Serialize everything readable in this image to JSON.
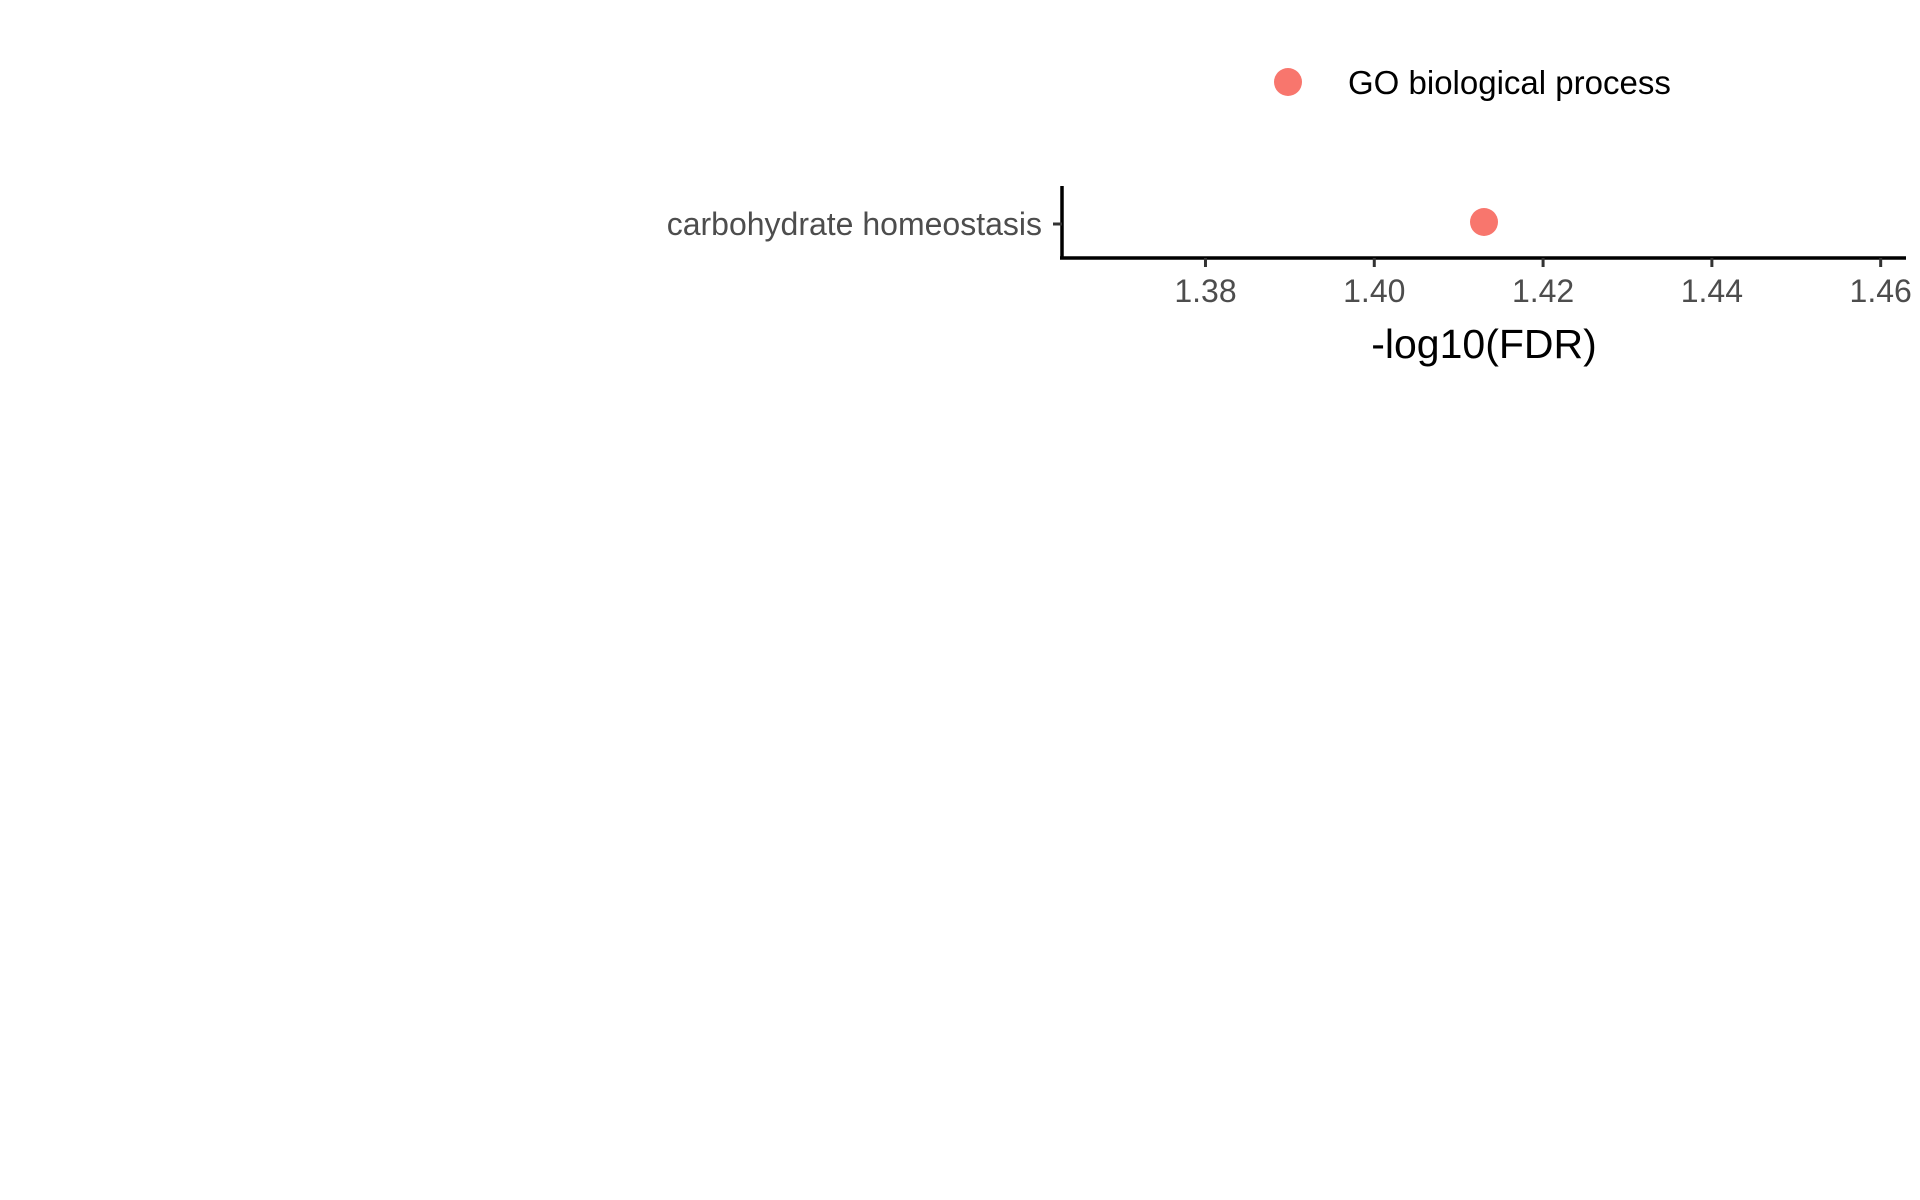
{
  "chart_data": {
    "type": "scatter",
    "xlabel": "-log10(FDR)",
    "ylabel": "",
    "xlim": [
      1.363,
      1.463
    ],
    "x_ticks": [
      "1.38",
      "1.40",
      "1.42",
      "1.44",
      "1.46"
    ],
    "categories": [
      "carbohydrate homeostasis"
    ],
    "series": [
      {
        "name": "GO biological process",
        "color": "#F8766D",
        "points": [
          {
            "category": "carbohydrate homeostasis",
            "x": 1.413
          }
        ]
      }
    ],
    "legend": {
      "placement": "top",
      "entries": [
        "GO biological process"
      ]
    },
    "grid": false
  }
}
